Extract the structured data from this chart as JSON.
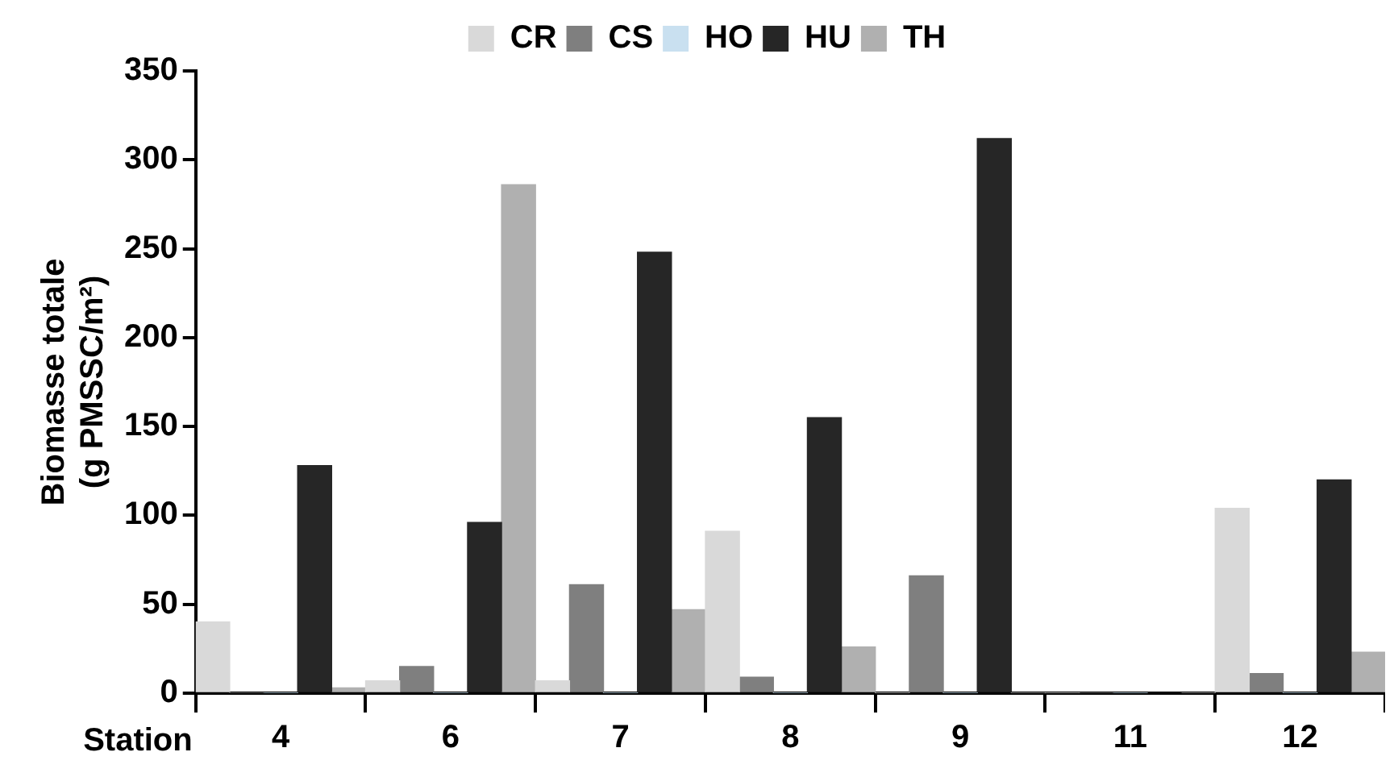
{
  "chart_data": {
    "type": "bar",
    "xlabel": "Station",
    "ylabel": "Biomasse totale\n(g PMSSC/m²)",
    "categories": [
      "4",
      "6",
      "7",
      "8",
      "9",
      "11",
      "12"
    ],
    "series": [
      {
        "name": "CR",
        "color": "#d9d9d9",
        "values": [
          40,
          7,
          7,
          91,
          0,
          0,
          104
        ]
      },
      {
        "name": "CS",
        "color": "#7f7f7f",
        "values": [
          0,
          15,
          61,
          9,
          66,
          0,
          11
        ]
      },
      {
        "name": "HO",
        "color": "#c9e0f0",
        "values": [
          0,
          0,
          0,
          0,
          0,
          0,
          0
        ]
      },
      {
        "name": "HU",
        "color": "#262626",
        "values": [
          128,
          96,
          248,
          155,
          312,
          0,
          120
        ]
      },
      {
        "name": "TH",
        "color": "#b0b0b0",
        "values": [
          3,
          286,
          47,
          26,
          0,
          0,
          23
        ]
      }
    ],
    "ylim": [
      0,
      350
    ],
    "yticks": [
      0,
      50,
      100,
      150,
      200,
      250,
      300,
      350
    ],
    "grid": false,
    "legend": "top"
  }
}
